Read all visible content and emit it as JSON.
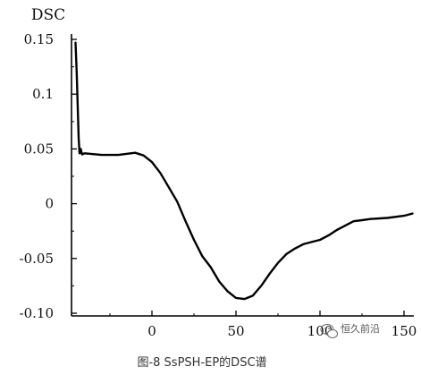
{
  "chart_data": {
    "type": "line",
    "ylabel": "DSC",
    "xlabel": "",
    "title": "",
    "xlim": [
      -45,
      150
    ],
    "ylim": [
      -0.1,
      0.15
    ],
    "y_ticks": [
      0.15,
      0.1,
      0.05,
      0,
      -0.05,
      -0.1
    ],
    "y_tick_labels": [
      "0.15",
      "0.1",
      "0.05",
      "0",
      "-0.05",
      "-0.10"
    ],
    "x_ticks": [
      0,
      50,
      100,
      150
    ],
    "x_tick_labels": [
      "0",
      "50",
      "100",
      "150"
    ],
    "grid": false,
    "legend": "none",
    "series": [
      {
        "color": "#000000",
        "points": [
          [
            -45.5,
            0.147
          ],
          [
            -44.8,
            0.12
          ],
          [
            -44.2,
            0.09
          ],
          [
            -43.6,
            0.06
          ],
          [
            -43.1,
            0.046
          ],
          [
            -42.4,
            0.05
          ],
          [
            -41.6,
            0.045
          ],
          [
            -40.0,
            0.046
          ],
          [
            -30,
            0.0445
          ],
          [
            -20,
            0.0445
          ],
          [
            -10,
            0.0465
          ],
          [
            -5,
            0.044
          ],
          [
            0,
            0.038
          ],
          [
            5,
            0.028
          ],
          [
            10,
            0.015
          ],
          [
            15,
            0.002
          ],
          [
            20,
            -0.016
          ],
          [
            25,
            -0.033
          ],
          [
            30,
            -0.048
          ],
          [
            35,
            -0.058
          ],
          [
            40,
            -0.071
          ],
          [
            45,
            -0.08
          ],
          [
            50,
            -0.086
          ],
          [
            55,
            -0.087
          ],
          [
            60,
            -0.084
          ],
          [
            65,
            -0.075
          ],
          [
            70,
            -0.064
          ],
          [
            75,
            -0.054
          ],
          [
            80,
            -0.046
          ],
          [
            85,
            -0.041
          ],
          [
            90,
            -0.037
          ],
          [
            95,
            -0.035
          ],
          [
            100,
            -0.033
          ],
          [
            105,
            -0.029
          ],
          [
            110,
            -0.024
          ],
          [
            115,
            -0.02
          ],
          [
            120,
            -0.016
          ],
          [
            125,
            -0.015
          ],
          [
            130,
            -0.014
          ],
          [
            140,
            -0.013
          ],
          [
            150,
            -0.011
          ],
          [
            155,
            -0.009
          ]
        ]
      }
    ]
  },
  "caption": "图-8   SsPSH-EP的DSC谱",
  "watermark": {
    "icon": "wechat-icon",
    "text": "恒久前沿"
  }
}
